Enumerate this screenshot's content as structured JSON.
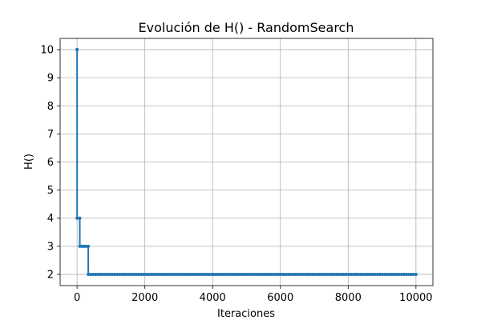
{
  "chart_data": {
    "type": "line",
    "title": "Evolución de H() - RandomSearch",
    "xlabel": "Iteraciones",
    "ylabel": "H()",
    "xlim": [
      -500,
      10500
    ],
    "ylim": [
      1.6,
      10.4
    ],
    "xticks": [
      0,
      2000,
      4000,
      6000,
      8000,
      10000
    ],
    "yticks": [
      2,
      3,
      4,
      5,
      6,
      7,
      8,
      9,
      10
    ],
    "grid": true,
    "line_color": "#1f77b4",
    "marker": "dot",
    "segments": [
      {
        "x_start": 0,
        "x_end": 0,
        "value": 10
      },
      {
        "x_start": 1,
        "x_end": 80,
        "value": 4
      },
      {
        "x_start": 81,
        "x_end": 330,
        "value": 3
      },
      {
        "x_start": 331,
        "x_end": 10000,
        "value": 2
      }
    ]
  }
}
